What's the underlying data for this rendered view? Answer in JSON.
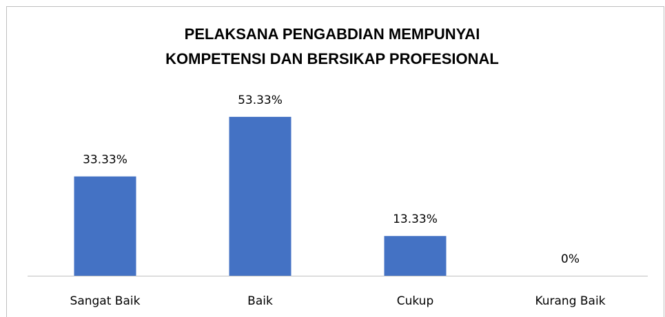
{
  "chart_data": {
    "type": "bar",
    "title": "PELAKSANA PENGABDIAN MEMPUNYAI KOMPETENSI DAN BERSIKAP PROFESIONAL",
    "categories": [
      "Sangat Baik",
      "Baik",
      "Cukup",
      "Kurang Baik"
    ],
    "values": [
      33.33,
      53.33,
      13.33,
      0
    ],
    "value_labels": [
      "33.33%",
      "53.33%",
      "13.33%",
      "0%"
    ],
    "color": "#4472c4",
    "ylim": [
      0,
      60
    ]
  }
}
